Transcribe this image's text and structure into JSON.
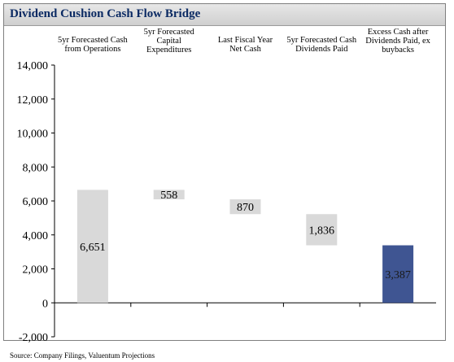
{
  "title": "Dividend Cushion Cash Flow Bridge",
  "source": "Source: Company Filings, Valuentum Projections",
  "colors": {
    "bar": "#d9d9d9",
    "total_bar": "#3f5592",
    "axis": "#000000"
  },
  "chart_data": {
    "type": "bar",
    "subtype": "waterfall",
    "title": "Dividend Cushion Cash Flow Bridge",
    "categories": [
      [
        "5yr Forecasted Cash",
        "from Operations"
      ],
      [
        "5yr Forecasted",
        "Capital",
        "Expenditures"
      ],
      [
        "Last Fiscal Year",
        "Net Cash"
      ],
      [
        "5yr Forecasted Cash",
        "Dividends Paid"
      ],
      [
        "Excess Cash after",
        "Dividends Paid, ex",
        "buybacks"
      ]
    ],
    "bars": [
      {
        "base": 0,
        "top": 6651,
        "value": 6651,
        "label": "6,651",
        "kind": "start"
      },
      {
        "base": 6093,
        "top": 6651,
        "value": 558,
        "label": "558",
        "kind": "decrease"
      },
      {
        "base": 5223,
        "top": 6093,
        "value": 870,
        "label": "870",
        "kind": "decrease"
      },
      {
        "base": 3387,
        "top": 5223,
        "value": 1836,
        "label": "1,836",
        "kind": "decrease"
      },
      {
        "base": 0,
        "top": 3387,
        "value": 3387,
        "label": "3,387",
        "kind": "total"
      }
    ],
    "yticks": [
      14000,
      12000,
      10000,
      8000,
      6000,
      4000,
      2000,
      0,
      -2000
    ],
    "ytick_labels": [
      "14,000",
      "12,000",
      "10,000",
      "8,000",
      "6,000",
      "4,000",
      "2,000",
      "0",
      "-2,000"
    ],
    "ylim": [
      -2000,
      14000
    ],
    "grid": false,
    "legend": "none"
  }
}
